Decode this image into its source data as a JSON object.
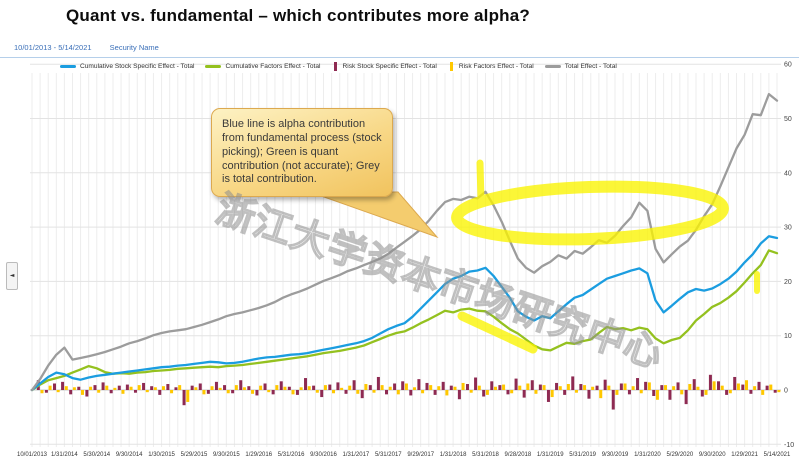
{
  "title": "Quant vs. fundamental – which contributes more alpha?",
  "header": {
    "date_range": "10/01/2013 - 5/14/2021",
    "security_label": "Security Name"
  },
  "callout": {
    "text": "Blue line is alpha contribution from fundamental process (stock picking); Green is quant contribution (not accurate); Grey is total contribution."
  },
  "watermark": "浙江大学资本市场研究中心",
  "panel_handle_glyph": "◄",
  "colors": {
    "header_text": "#3a6fb8",
    "highlighter": "#fbf400",
    "callout_fill_top": "#fdf2c4",
    "callout_fill_bottom": "#f1c35e",
    "callout_border": "#dca94f",
    "grid_line": "#e3e3e3",
    "zero_line": "#c8c8c8",
    "axis_text": "#444444"
  },
  "chart_data": {
    "type": "line",
    "title": "Quant vs. fundamental – which contributes more alpha?",
    "xlabel": "",
    "ylabel": "",
    "y_axis_side": "right",
    "ylim": [
      -10,
      60
    ],
    "y_ticks": [
      60,
      50,
      40,
      30,
      20,
      10,
      0,
      -10
    ],
    "grid": true,
    "legend_position": "top",
    "months_per_tick": 4,
    "x_tick_labels": [
      "10/01/2013",
      "1/31/2014",
      "5/30/2014",
      "9/30/2014",
      "1/30/2015",
      "5/29/2015",
      "9/30/2015",
      "1/29/2016",
      "5/31/2016",
      "9/30/2016",
      "1/31/2017",
      "5/31/2017",
      "9/29/2017",
      "1/31/2018",
      "5/31/2018",
      "9/28/2018",
      "1/31/2019",
      "5/31/2019",
      "9/30/2019",
      "1/31/2020",
      "5/29/2020",
      "9/30/2020",
      "1/29/2021",
      "5/14/2021"
    ],
    "series": [
      {
        "name": "Cumulative Stock Specific Effect - Total",
        "type": "line",
        "color": "#1b9de0",
        "values": [
          0,
          1.2,
          2.4,
          3.2,
          2.9,
          2.2,
          1.9,
          2.3,
          2.6,
          2.8,
          3.0,
          3.2,
          3.4,
          3.6,
          3.8,
          4.0,
          4.2,
          4.3,
          4.5,
          4.6,
          4.8,
          5.0,
          5.2,
          5.1,
          4.9,
          5.0,
          5.2,
          5.5,
          5.8,
          6.0,
          6.1,
          6.3,
          6.5,
          6.6,
          6.8,
          7.1,
          7.4,
          7.7,
          8.0,
          8.3,
          8.6,
          9.0,
          9.6,
          10.4,
          11.2,
          11.8,
          12.3,
          13.5,
          15.0,
          16.5,
          18.0,
          19.5,
          20.5,
          21.0,
          21.8,
          22.0,
          22.5,
          21.0,
          19.0,
          17.0,
          14.5,
          13.5,
          12.8,
          13.6,
          13.2,
          14.5,
          15.8,
          17.0,
          17.5,
          18.5,
          19.5,
          20.5,
          21.0,
          21.5,
          22.0,
          22.4,
          21.5,
          16.5,
          14.3,
          15.5,
          16.8,
          18.0,
          18.6,
          18.3,
          18.7,
          19.5,
          20.5,
          21.8,
          23.5,
          25.0,
          27.0,
          28.3,
          28.0
        ]
      },
      {
        "name": "Cumulative Factors Effect - Total",
        "type": "line",
        "color": "#94c11f",
        "values": [
          0,
          1.0,
          1.8,
          2.2,
          2.6,
          3.2,
          3.8,
          4.4,
          4.0,
          3.3,
          3.0,
          3.1,
          3.0,
          3.2,
          3.3,
          3.5,
          3.6,
          3.7,
          3.9,
          4.0,
          4.1,
          4.2,
          4.3,
          4.2,
          4.4,
          4.5,
          4.6,
          4.8,
          5.0,
          5.2,
          5.4,
          5.6,
          5.8,
          6.0,
          6.2,
          6.5,
          6.8,
          7.0,
          7.2,
          7.5,
          7.8,
          8.2,
          8.8,
          9.4,
          10.0,
          10.5,
          10.8,
          11.5,
          12.3,
          13.0,
          13.8,
          14.6,
          14.3,
          14.8,
          15.0,
          14.6,
          14.5,
          13.5,
          12.3,
          11.2,
          10.4,
          9.3,
          8.2,
          7.5,
          7.3,
          8.0,
          8.7,
          8.5,
          9.0,
          9.3,
          10.5,
          11.6,
          11.2,
          11.4,
          11.0,
          11.5,
          11.2,
          9.5,
          8.6,
          9.2,
          9.6,
          11.0,
          12.8,
          14.0,
          15.3,
          16.0,
          17.0,
          18.2,
          19.8,
          21.5,
          23.0,
          25.7,
          25.2
        ]
      },
      {
        "name": "Risk Stock Specific Effect - Total",
        "type": "bar",
        "color": "#8e2a52",
        "values": [
          0.0,
          1.8,
          -0.5,
          1.2,
          1.5,
          -0.8,
          0.6,
          -1.2,
          0.9,
          1.4,
          -0.6,
          0.8,
          1.0,
          -0.5,
          1.3,
          0.7,
          -0.9,
          1.1,
          0.5,
          -2.8,
          0.8,
          1.2,
          -0.7,
          1.5,
          0.9,
          -0.6,
          1.8,
          0.7,
          -1.0,
          1.2,
          -0.8,
          1.6,
          0.6,
          -0.9,
          2.2,
          0.8,
          -1.3,
          1.0,
          1.4,
          -0.7,
          1.8,
          -1.5,
          0.9,
          2.4,
          -0.8,
          1.2,
          1.6,
          -1.0,
          2.0,
          1.3,
          -0.9,
          1.5,
          0.8,
          -1.7,
          1.1,
          2.3,
          -1.2,
          1.6,
          0.9,
          -0.8,
          2.1,
          -1.4,
          1.8,
          1.0,
          -2.2,
          1.3,
          -0.9,
          2.5,
          1.1,
          -1.6,
          0.8,
          1.9,
          -3.6,
          1.2,
          -0.8,
          2.2,
          1.5,
          -1.1,
          0.9,
          -1.8,
          1.4,
          -2.6,
          2.0,
          -1.2,
          2.8,
          1.6,
          -0.9,
          2.4,
          1.0,
          -0.7,
          1.5,
          0.8,
          -0.5
        ]
      },
      {
        "name": "Risk Factors Effect - Total",
        "type": "bar",
        "color": "#ffc800",
        "values": [
          0.0,
          -0.6,
          0.8,
          -0.4,
          0.7,
          0.5,
          -0.9,
          0.6,
          -0.5,
          0.8,
          0.4,
          -0.7,
          0.6,
          0.9,
          -0.4,
          0.5,
          0.7,
          -0.6,
          0.9,
          -2.2,
          0.5,
          -0.8,
          0.7,
          0.4,
          -0.6,
          0.9,
          0.5,
          -0.7,
          0.8,
          -0.4,
          0.9,
          0.6,
          -0.8,
          0.5,
          0.7,
          -0.5,
          0.9,
          -0.6,
          0.4,
          0.8,
          -0.7,
          1.1,
          -0.5,
          0.9,
          0.6,
          -0.8,
          1.2,
          0.5,
          -0.6,
          0.9,
          0.7,
          -1.0,
          0.6,
          1.3,
          -0.5,
          0.8,
          -0.9,
          0.6,
          1.0,
          -0.6,
          0.8,
          1.2,
          -0.7,
          0.9,
          -1.3,
          0.7,
          1.1,
          -0.5,
          0.9,
          0.6,
          -1.5,
          0.8,
          -0.9,
          1.2,
          0.7,
          -0.6,
          1.4,
          -1.8,
          0.9,
          0.7,
          -0.8,
          1.1,
          0.6,
          -0.9,
          1.6,
          0.8,
          -0.6,
          1.2,
          1.8,
          0.7,
          -0.9,
          1.0,
          -0.4
        ]
      },
      {
        "name": "Total Effect - Total",
        "type": "line",
        "color": "#9c9c9c",
        "values": [
          0,
          2,
          4.5,
          6.5,
          7.8,
          5.6,
          5.9,
          6.2,
          6.6,
          7.0,
          7.5,
          8.0,
          8.6,
          9.0,
          9.5,
          10.1,
          10.5,
          10.8,
          11.0,
          11.2,
          11.6,
          12.0,
          12.5,
          13.0,
          13.6,
          14.0,
          14.3,
          14.7,
          15.1,
          15.6,
          16.2,
          17.0,
          17.6,
          18.1,
          18.7,
          19.4,
          20.1,
          20.6,
          21.2,
          21.9,
          22.4,
          23.0,
          23.6,
          24.2,
          25.1,
          26.2,
          27.3,
          28.4,
          29.6,
          31.2,
          33.0,
          34.6,
          35.2,
          35.0,
          35.6,
          35.3,
          36.5,
          34.0,
          31.0,
          27.5,
          24.2,
          22.5,
          21.6,
          22.8,
          23.6,
          24.8,
          24.2,
          25.6,
          25.1,
          26.3,
          27.6,
          27.1,
          28.4,
          30.2,
          31.8,
          34.5,
          33.0,
          26.0,
          23.5,
          25.0,
          26.4,
          27.5,
          29.5,
          32.0,
          34.2,
          37.5,
          41.0,
          44.5,
          47.0,
          50.8,
          50.6,
          54.5,
          53.3
        ]
      }
    ],
    "annotations": {
      "highlighter_marks": [
        {
          "shape": "ellipse",
          "cx": 590,
          "cy": 213,
          "rx": 133,
          "ry": 26,
          "rotate": -2,
          "width": 12
        },
        {
          "shape": "line",
          "x1": 480,
          "y1": 163,
          "x2": 481,
          "y2": 200,
          "width": 7
        },
        {
          "shape": "line",
          "x1": 462,
          "y1": 316,
          "x2": 533,
          "y2": 349,
          "width": 9
        },
        {
          "shape": "line",
          "x1": 757,
          "y1": 274,
          "x2": 757,
          "y2": 291,
          "width": 6
        }
      ]
    }
  }
}
